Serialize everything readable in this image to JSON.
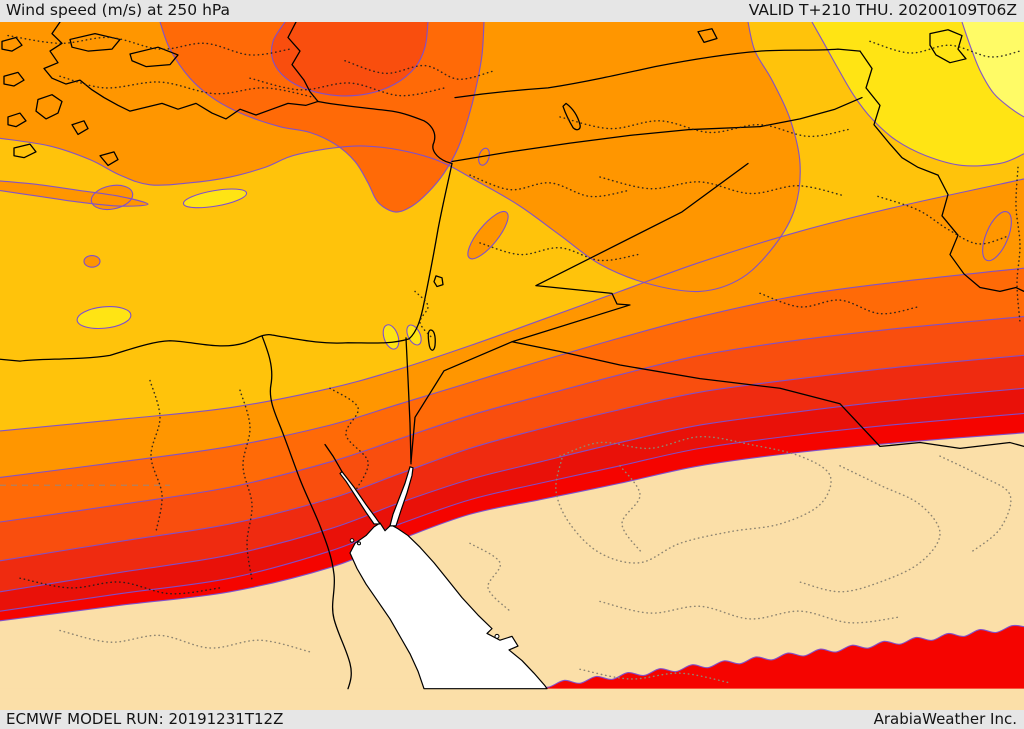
{
  "header": {
    "title": "Wind speed (m/s) at 250 hPa",
    "valid_time": "VALID T+210 THU. 20200109T06Z"
  },
  "footer": {
    "model_run": "ECMWF MODEL RUN: 20191231T12Z",
    "credit": "ArabiaWeather Inc."
  },
  "map": {
    "palette": [
      {
        "name": "calm-white",
        "hex": "#FFFFFF"
      },
      {
        "name": "beige",
        "hex": "#FBDFA8"
      },
      {
        "name": "pale-yellow",
        "hex": "#FFFB66"
      },
      {
        "name": "yellow",
        "hex": "#FFE414"
      },
      {
        "name": "gold",
        "hex": "#FFC30B"
      },
      {
        "name": "orange",
        "hex": "#FF9600"
      },
      {
        "name": "deep-orange",
        "hex": "#FF6A07"
      },
      {
        "name": "red-orange",
        "hex": "#F94E0E"
      },
      {
        "name": "scarlet",
        "hex": "#EF2B10"
      },
      {
        "name": "dark-red",
        "hex": "#E91109"
      },
      {
        "name": "bright-red",
        "hex": "#F50400"
      }
    ],
    "lines": {
      "contour": "#7C4FD0",
      "geography": "#000000",
      "admin": "#1C1C1C",
      "admin_light": "#8F8672",
      "graticule": "#8A8A8A"
    },
    "chrome": {
      "bar_background": "#E6E6E6",
      "bar_text": "#141414"
    }
  }
}
